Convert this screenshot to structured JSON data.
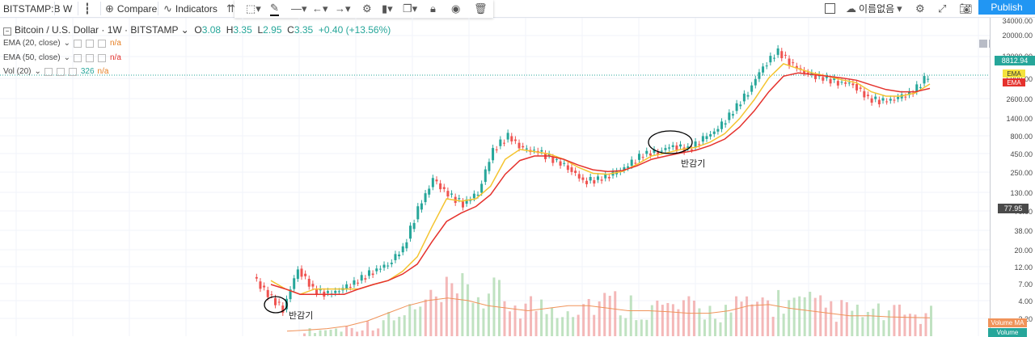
{
  "toolbar": {
    "symbol": "BITSTAMP:B",
    "interval": "W",
    "compare_label": "Compare",
    "indicators_label": "Indicators",
    "layout_name": "이름없음",
    "publish_label": "Publish"
  },
  "legend": {
    "title": "Bitcoin / U.S. Dollar",
    "interval": "1W",
    "exchange": "BITSTAMP",
    "open_label": "O",
    "open": "3.08",
    "high_label": "H",
    "high": "3.35",
    "low_label": "L",
    "low": "2.95",
    "close_label": "C",
    "close": "3.35",
    "change": "+0.40 (+13.56%)",
    "indicators": [
      {
        "label": "EMA (20, close)",
        "value": "n/a"
      },
      {
        "label": "EMA (50, close)",
        "value": "n/a"
      },
      {
        "label": "Vol (20)",
        "value_a": "326",
        "value_b": "n/a"
      }
    ]
  },
  "axis": {
    "ticks": [
      "34000.00",
      "20000.00",
      "12000.00",
      "5000.00",
      "2600.00",
      "1400.00",
      "800.00",
      "450.00",
      "250.00",
      "130.00",
      "70.00",
      "38.00",
      "20.00",
      "12.00",
      "7.00",
      "4.00",
      "2.20"
    ],
    "price_tag": "8812.94",
    "ema_tag_1": "EMA",
    "ema_tag_2": "EMA",
    "cursor_tag": "77.95",
    "volume_ma_tag": "Volume MA",
    "volume_tag": "Volume"
  },
  "annotations": [
    "반감기",
    "반감기"
  ],
  "colors": {
    "up": "#26a69a",
    "down": "#ef5350",
    "ema20": "#f4c430",
    "ema50": "#e5322d",
    "volume_ma": "#f0935a",
    "accent": "#2196f3"
  },
  "chart_data": {
    "type": "line",
    "title": "Bitcoin / U.S. Dollar",
    "xlabel": "",
    "ylabel": "",
    "scale": "log",
    "ylim": [
      2.2,
      34000
    ],
    "series": [
      {
        "name": "",
        "values": [
          9,
          5,
          3,
          12,
          6,
          5,
          6,
          8,
          11,
          14,
          24,
          90,
          250,
          150,
          110,
          160,
          700,
          1100,
          700,
          650,
          500,
          380,
          240,
          250,
          300,
          400,
          600,
          650,
          800,
          700,
          1000,
          1400,
          2600,
          5000,
          12000,
          20000,
          12000,
          9000,
          8000,
          7000,
          6500,
          4000,
          3600,
          4000,
          5000,
          8800
        ]
      },
      {
        "name": "EMA",
        "values": [
          8,
          6,
          5,
          6,
          6,
          6,
          6,
          7,
          8,
          11,
          18,
          50,
          130,
          120,
          130,
          200,
          500,
          700,
          650,
          600,
          500,
          380,
          310,
          300,
          330,
          420,
          560,
          620,
          700,
          750,
          900,
          1200,
          2000,
          3800,
          8000,
          13000,
          11000,
          9500,
          8500,
          7500,
          6800,
          5000,
          4300,
          4300,
          4800,
          6500
        ]
      },
      {
        "name": "EMA",
        "values": [
          7,
          6,
          5,
          5,
          5,
          5,
          6,
          7,
          8,
          10,
          14,
          30,
          60,
          80,
          100,
          150,
          300,
          480,
          560,
          560,
          500,
          410,
          350,
          330,
          340,
          400,
          500,
          560,
          620,
          680,
          800,
          1000,
          1500,
          2600,
          5000,
          8500,
          9500,
          9000,
          8500,
          8000,
          7400,
          6300,
          5400,
          5000,
          5000,
          5600
        ]
      },
      {
        "name": "Volume MA",
        "values": [
          0.1,
          0.12,
          0.15,
          0.2,
          0.3,
          0.45,
          0.6,
          0.7,
          0.75,
          0.7,
          0.6,
          0.55,
          0.5,
          0.55,
          0.6,
          0.6,
          0.55,
          0.5,
          0.5,
          0.48,
          0.45,
          0.45,
          0.5,
          0.6,
          0.62,
          0.55,
          0.5,
          0.45,
          0.4,
          0.4,
          0.38,
          0.37,
          0.36
        ]
      }
    ]
  }
}
